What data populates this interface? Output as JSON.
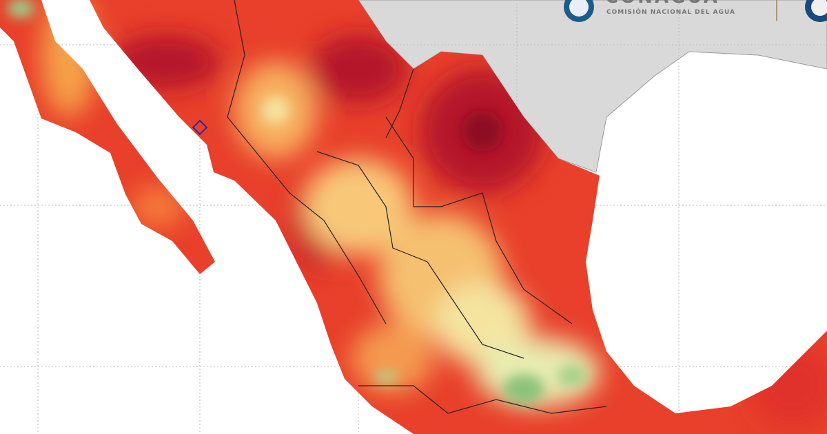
{
  "header": {
    "logo": "CONAGUA",
    "agency": "COMISIÓN NACIONAL DEL AGUA"
  }
}
